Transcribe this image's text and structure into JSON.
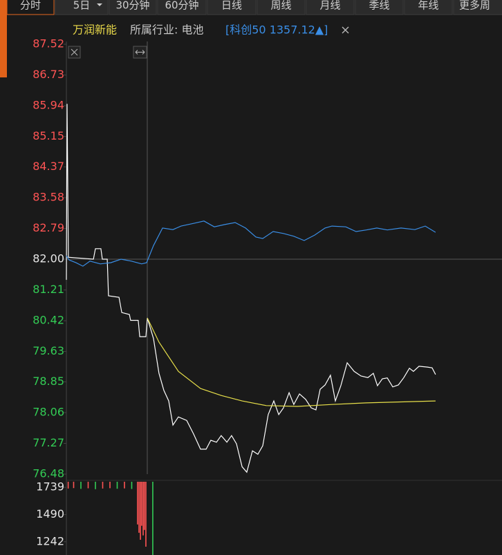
{
  "toolbar": {
    "tabs": [
      "分时",
      "5日",
      "30分钟",
      "60分钟",
      "日线",
      "周线",
      "月线",
      "季线",
      "年线",
      "更多周"
    ]
  },
  "info": {
    "name": "万润新能",
    "industry": "所属行业: 电池",
    "index": "[科创50 1357.12▲]"
  },
  "chart_data": [
    {
      "type": "line",
      "xlim": [
        0,
        240
      ],
      "ylim": [
        76.48,
        87.52
      ],
      "yticks": [
        {
          "value": 87.52,
          "label": "87.52"
        },
        86.73,
        85.94,
        85.15,
        84.37,
        83.58,
        82.79,
        {
          "value": 82.0,
          "label": "82.00"
        },
        81.21,
        {
          "value": 80.42,
          "label": "80.42"
        },
        79.63,
        78.85,
        78.06,
        77.27,
        76.48
      ],
      "baseline": 82.0,
      "up_color": "#ff5454",
      "down_color": "#33cc55",
      "flat_color": "#e6e6e6",
      "series": [
        {
          "color": "#ffffff",
          "x": [
            0,
            0.4,
            1.1,
            14.9,
            16,
            19,
            19.8,
            22.5,
            23.2,
            29,
            30.5,
            34.7,
            35.4,
            39.6,
            40.4,
            43.8,
            44.6,
            48,
            51,
            53.7,
            56.4,
            58.7,
            61.7,
            66.3,
            70.1,
            73.9,
            77,
            79.6,
            82.7,
            85.3,
            88.4,
            91,
            93.7,
            96.8,
            99.4,
            102.5,
            105.5,
            108.2,
            111.2,
            114.3,
            117,
            119.6,
            122.7,
            125.3,
            128.4,
            131.8,
            134.9,
            137.5,
            139.8,
            142.5,
            145.5,
            148.2,
            151.2,
            154.7,
            158.5,
            162.3,
            166.1,
            169.1,
            171.4,
            174.1,
            176.8,
            179.8,
            182.9,
            185.9,
            189,
            191.2,
            194.3,
            198.9,
            201.5,
            203.4
          ],
          "values": [
            81.47,
            85.99,
            82.05,
            82.0,
            82.27,
            82.27,
            82.0,
            82.0,
            81.06,
            81.02,
            80.63,
            80.58,
            80.43,
            80.43,
            80.01,
            80.01,
            80.49,
            79.96,
            79.07,
            78.63,
            78.36,
            77.74,
            77.95,
            77.86,
            77.51,
            77.12,
            77.12,
            77.35,
            77.3,
            77.47,
            77.3,
            77.47,
            77.26,
            76.67,
            76.53,
            77.08,
            76.99,
            77.21,
            78.01,
            78.36,
            78.01,
            78.18,
            78.57,
            78.27,
            78.54,
            78.4,
            78.18,
            78.13,
            78.66,
            78.77,
            79.02,
            78.36,
            78.75,
            79.34,
            79.12,
            79.0,
            78.96,
            79.07,
            78.75,
            78.93,
            78.95,
            78.72,
            78.77,
            78.96,
            79.2,
            79.12,
            79.25,
            79.23,
            79.21,
            79.04
          ]
        },
        {
          "color": "#e8e04a",
          "x": [
            44.6,
            51,
            61.7,
            73.9,
            85.3,
            96.8,
            110.1,
            127.2,
            146.3,
            165.3,
            203.4
          ],
          "values": [
            80.49,
            79.87,
            79.12,
            78.68,
            78.5,
            78.36,
            78.24,
            78.22,
            78.27,
            78.31,
            78.36
          ]
        },
        {
          "color": "#3a8ee6",
          "x": [
            0,
            1.5,
            5.3,
            9.1,
            13,
            18.7,
            24.4,
            30.1,
            35.8,
            41.5,
            44.2,
            48,
            53,
            58.7,
            63.2,
            70.1,
            75.8,
            81.5,
            87.2,
            93,
            98.7,
            104.4,
            108.2,
            113.9,
            119.6,
            125.3,
            131,
            136.8,
            142.5,
            146.3,
            153.9,
            159.6,
            165.3,
            171,
            176.8,
            184.4,
            192,
            197.7,
            203.4
          ],
          "values": [
            82.09,
            81.98,
            81.91,
            81.82,
            81.95,
            81.88,
            81.91,
            82.0,
            81.95,
            81.88,
            81.91,
            82.35,
            82.8,
            82.76,
            82.85,
            82.92,
            82.98,
            82.83,
            82.89,
            82.94,
            82.8,
            82.57,
            82.53,
            82.71,
            82.66,
            82.59,
            82.48,
            82.62,
            82.8,
            82.85,
            82.83,
            82.71,
            82.75,
            82.8,
            82.75,
            82.8,
            82.76,
            82.85,
            82.69
          ]
        }
      ]
    },
    {
      "type": "bar",
      "xlim": [
        0,
        240
      ],
      "ylim": [
        1121,
        1790
      ],
      "yticks": [
        1739,
        1490,
        1242
      ],
      "x": [
        1,
        4,
        8,
        12,
        16,
        20,
        24,
        28,
        32,
        36,
        39.2,
        40,
        40.8,
        41.5,
        42.3,
        43,
        43.8,
        47.6
      ],
      "values": [
        1728,
        1732,
        1725,
        1730,
        1722,
        1728,
        1731,
        1726,
        1729,
        1724,
        1400,
        1324,
        1260,
        1388,
        1300,
        1350,
        1197,
        1121
      ],
      "bar_colors": [
        "#ff5454",
        "#ff5454",
        "#33cc55",
        "#ff5454",
        "#33cc55",
        "#ff5454",
        "#ff5454",
        "#33cc55",
        "#ff5454",
        "#33cc55",
        "#ff5454",
        "#ff5454",
        "#ff5454",
        "#ff5454",
        "#ff5454",
        "#ff5454",
        "#ff5454",
        "#33cc55"
      ]
    }
  ]
}
